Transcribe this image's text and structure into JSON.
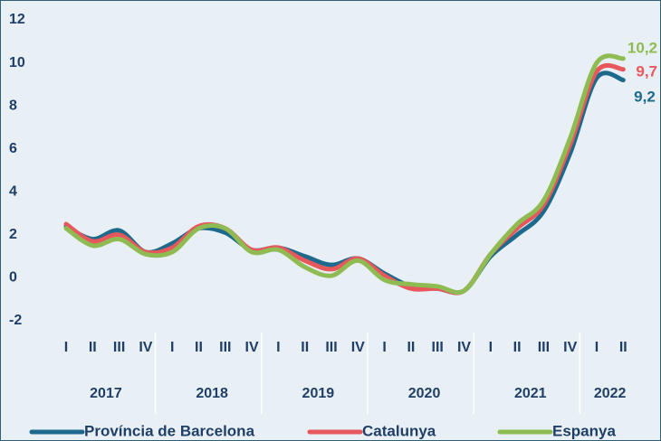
{
  "chart_data": {
    "type": "line",
    "categories": [
      "I",
      "II",
      "III",
      "IV",
      "I",
      "II",
      "III",
      "IV",
      "I",
      "II",
      "III",
      "IV",
      "I",
      "II",
      "III",
      "IV",
      "I",
      "II",
      "III",
      "IV",
      "I",
      "II"
    ],
    "groups": [
      "2017",
      "2018",
      "2019",
      "2020",
      "2021",
      "2022"
    ],
    "series": [
      {
        "name": "Província de Barcelona",
        "color": "#1d6a8c",
        "values": [
          2.4,
          1.8,
          2.2,
          1.2,
          1.6,
          2.3,
          2.1,
          1.3,
          1.4,
          1.0,
          0.6,
          0.9,
          0.2,
          -0.4,
          -0.5,
          -0.6,
          1.0,
          2.0,
          3.1,
          5.8,
          9.3,
          9.2
        ],
        "value_labels": [
          null,
          null,
          null,
          null,
          null,
          null,
          null,
          null,
          null,
          null,
          null,
          null,
          null,
          null,
          null,
          null,
          null,
          null,
          null,
          null,
          null,
          "9,2"
        ]
      },
      {
        "name": "Catalunya",
        "color": "#e8575b",
        "values": [
          2.5,
          1.7,
          2.0,
          1.2,
          1.4,
          2.4,
          2.3,
          1.3,
          1.4,
          0.8,
          0.4,
          0.9,
          0.1,
          -0.5,
          -0.5,
          -0.6,
          1.1,
          2.3,
          3.4,
          6.2,
          9.6,
          9.7
        ],
        "value_labels": [
          null,
          null,
          null,
          null,
          null,
          null,
          null,
          null,
          null,
          null,
          null,
          null,
          null,
          null,
          null,
          null,
          null,
          null,
          null,
          null,
          null,
          "9,7"
        ]
      },
      {
        "name": "Espanya",
        "color": "#8fbc52",
        "values": [
          2.3,
          1.5,
          1.8,
          1.1,
          1.2,
          2.3,
          2.3,
          1.2,
          1.3,
          0.5,
          0.1,
          0.8,
          -0.1,
          -0.3,
          -0.4,
          -0.6,
          1.1,
          2.5,
          3.6,
          6.5,
          10.0,
          10.2
        ],
        "value_labels": [
          null,
          null,
          null,
          null,
          null,
          null,
          null,
          null,
          null,
          null,
          null,
          null,
          null,
          null,
          null,
          null,
          null,
          null,
          null,
          null,
          null,
          "10,2"
        ]
      }
    ],
    "ylim": [
      -2,
      12
    ],
    "yticks": [
      -2,
      0,
      2,
      4,
      6,
      8,
      10,
      12
    ],
    "grid": false
  }
}
